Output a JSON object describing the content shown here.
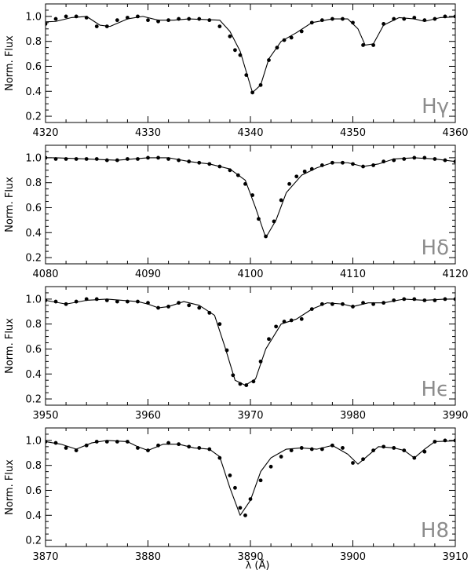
{
  "figure": {
    "xlabel": "λ (Å)",
    "ylabel": "Norm. Flux"
  },
  "chart_data": [
    {
      "type": "line",
      "panel_label": "Hγ",
      "xlim": [
        4320,
        4360
      ],
      "ylim": [
        0.15,
        1.1
      ],
      "x_ticks": [
        "4320",
        "4330",
        "4340",
        "4350",
        "4360"
      ],
      "y_ticks": [
        "0.2",
        "0.4",
        "0.6",
        "0.8",
        "1.0"
      ],
      "ylabel": "Norm. Flux",
      "model": [
        [
          4318,
          0.95
        ],
        [
          4321,
          0.96
        ],
        [
          4322.5,
          0.99
        ],
        [
          4324,
          1.0
        ],
        [
          4325.3,
          0.93
        ],
        [
          4326.3,
          0.92
        ],
        [
          4328,
          0.98
        ],
        [
          4329.5,
          1.0
        ],
        [
          4331,
          0.97
        ],
        [
          4332.5,
          0.97
        ],
        [
          4334,
          0.98
        ],
        [
          4337,
          0.97
        ],
        [
          4338,
          0.88
        ],
        [
          4339,
          0.72
        ],
        [
          4340.2,
          0.39
        ],
        [
          4341,
          0.45
        ],
        [
          4341.8,
          0.66
        ],
        [
          4343,
          0.8
        ],
        [
          4344.5,
          0.87
        ],
        [
          4346,
          0.95
        ],
        [
          4348,
          0.98
        ],
        [
          4349.5,
          0.98
        ],
        [
          4350.5,
          0.9
        ],
        [
          4351.2,
          0.77
        ],
        [
          4352,
          0.78
        ],
        [
          4353,
          0.93
        ],
        [
          4354.5,
          0.99
        ],
        [
          4356,
          0.98
        ],
        [
          4357,
          0.96
        ],
        [
          4358.5,
          0.99
        ],
        [
          4361,
          1.0
        ]
      ],
      "observed": [
        [
          4318,
          0.96
        ],
        [
          4319,
          0.94
        ],
        [
          4320,
          0.94
        ],
        [
          4321,
          0.98
        ],
        [
          4322,
          1.0
        ],
        [
          4323,
          1.0
        ],
        [
          4324,
          0.99
        ],
        [
          4325,
          0.92
        ],
        [
          4326,
          0.92
        ],
        [
          4327,
          0.97
        ],
        [
          4328,
          0.99
        ],
        [
          4329,
          1.0
        ],
        [
          4330,
          0.97
        ],
        [
          4331,
          0.96
        ],
        [
          4332,
          0.97
        ],
        [
          4333,
          0.98
        ],
        [
          4334,
          0.98
        ],
        [
          4335,
          0.98
        ],
        [
          4336,
          0.97
        ],
        [
          4337,
          0.92
        ],
        [
          4338,
          0.84
        ],
        [
          4338.5,
          0.73
        ],
        [
          4339,
          0.69
        ],
        [
          4339.6,
          0.53
        ],
        [
          4340.2,
          0.39
        ],
        [
          4341,
          0.45
        ],
        [
          4341.8,
          0.65
        ],
        [
          4342.6,
          0.75
        ],
        [
          4343.3,
          0.81
        ],
        [
          4344,
          0.83
        ],
        [
          4345,
          0.88
        ],
        [
          4346,
          0.95
        ],
        [
          4347,
          0.97
        ],
        [
          4348,
          0.98
        ],
        [
          4349,
          0.98
        ],
        [
          4350,
          0.95
        ],
        [
          4351,
          0.77
        ],
        [
          4352,
          0.77
        ],
        [
          4353,
          0.94
        ],
        [
          4354,
          0.98
        ],
        [
          4355,
          0.98
        ],
        [
          4356,
          0.99
        ],
        [
          4357,
          0.97
        ],
        [
          4358,
          0.98
        ],
        [
          4359,
          1.0
        ],
        [
          4360,
          1.0
        ]
      ]
    },
    {
      "type": "line",
      "panel_label": "Hδ",
      "xlim": [
        4080,
        4120
      ],
      "ylim": [
        0.15,
        1.1
      ],
      "x_ticks": [
        "4080",
        "4090",
        "4100",
        "4110",
        "4120"
      ],
      "y_ticks": [
        "0.2",
        "0.4",
        "0.6",
        "0.8",
        "1.0"
      ],
      "ylabel": "Norm. Flux",
      "model": [
        [
          4078,
          1.0
        ],
        [
          4081,
          1.0
        ],
        [
          4084,
          0.99
        ],
        [
          4087,
          0.98
        ],
        [
          4090,
          1.0
        ],
        [
          4092,
          1.0
        ],
        [
          4094,
          0.97
        ],
        [
          4096,
          0.95
        ],
        [
          4098,
          0.91
        ],
        [
          4099.5,
          0.82
        ],
        [
          4100.5,
          0.6
        ],
        [
          4101.5,
          0.36
        ],
        [
          4102.5,
          0.5
        ],
        [
          4103.5,
          0.72
        ],
        [
          4105,
          0.86
        ],
        [
          4106.5,
          0.92
        ],
        [
          4108,
          0.96
        ],
        [
          4109.5,
          0.96
        ],
        [
          4111,
          0.93
        ],
        [
          4112.5,
          0.95
        ],
        [
          4114,
          0.99
        ],
        [
          4116,
          1.0
        ],
        [
          4118,
          0.99
        ],
        [
          4121,
          0.96
        ]
      ],
      "observed": [
        [
          4080,
          1.0
        ],
        [
          4081,
          0.99
        ],
        [
          4082,
          0.99
        ],
        [
          4083,
          0.99
        ],
        [
          4084,
          0.99
        ],
        [
          4085,
          0.99
        ],
        [
          4086,
          0.98
        ],
        [
          4087,
          0.98
        ],
        [
          4088,
          0.99
        ],
        [
          4089,
          0.99
        ],
        [
          4090,
          1.0
        ],
        [
          4091,
          1.0
        ],
        [
          4092,
          0.99
        ],
        [
          4093,
          0.98
        ],
        [
          4094,
          0.97
        ],
        [
          4095,
          0.96
        ],
        [
          4096,
          0.95
        ],
        [
          4097,
          0.93
        ],
        [
          4098,
          0.9
        ],
        [
          4098.8,
          0.86
        ],
        [
          4099.5,
          0.79
        ],
        [
          4100.2,
          0.7
        ],
        [
          4100.8,
          0.51
        ],
        [
          4101.5,
          0.37
        ],
        [
          4102.3,
          0.49
        ],
        [
          4103,
          0.66
        ],
        [
          4103.8,
          0.79
        ],
        [
          4104.5,
          0.85
        ],
        [
          4105.3,
          0.89
        ],
        [
          4106,
          0.91
        ],
        [
          4107,
          0.94
        ],
        [
          4108,
          0.96
        ],
        [
          4109,
          0.96
        ],
        [
          4110,
          0.95
        ],
        [
          4111,
          0.93
        ],
        [
          4112,
          0.94
        ],
        [
          4113,
          0.97
        ],
        [
          4114,
          0.98
        ],
        [
          4115,
          0.99
        ],
        [
          4116,
          1.0
        ],
        [
          4117,
          1.0
        ],
        [
          4118,
          0.99
        ],
        [
          4119,
          0.98
        ],
        [
          4120,
          0.97
        ]
      ]
    },
    {
      "type": "line",
      "panel_label": "Hϵ",
      "xlim": [
        3950,
        3990
      ],
      "ylim": [
        0.15,
        1.1
      ],
      "x_ticks": [
        "3950",
        "3960",
        "3970",
        "3980",
        "3990"
      ],
      "y_ticks": [
        "0.2",
        "0.4",
        "0.6",
        "0.8",
        "1.0"
      ],
      "ylabel": "Norm. Flux",
      "model": [
        [
          3948,
          1.0
        ],
        [
          3950,
          0.99
        ],
        [
          3952,
          0.96
        ],
        [
          3954,
          0.99
        ],
        [
          3956,
          1.0
        ],
        [
          3959,
          0.98
        ],
        [
          3960,
          0.96
        ],
        [
          3961,
          0.93
        ],
        [
          3962,
          0.94
        ],
        [
          3963.5,
          0.98
        ],
        [
          3965,
          0.95
        ],
        [
          3966.5,
          0.87
        ],
        [
          3967.5,
          0.62
        ],
        [
          3968.5,
          0.35
        ],
        [
          3969.5,
          0.31
        ],
        [
          3970.5,
          0.36
        ],
        [
          3971.5,
          0.6
        ],
        [
          3973,
          0.8
        ],
        [
          3974.5,
          0.84
        ],
        [
          3976,
          0.92
        ],
        [
          3977.5,
          0.97
        ],
        [
          3979,
          0.96
        ],
        [
          3980,
          0.94
        ],
        [
          3981.5,
          0.97
        ],
        [
          3983,
          0.97
        ],
        [
          3985,
          1.0
        ],
        [
          3987,
          0.99
        ],
        [
          3989,
          1.0
        ],
        [
          3991,
          1.0
        ]
      ],
      "observed": [
        [
          3950,
          0.99
        ],
        [
          3951,
          0.98
        ],
        [
          3952,
          0.96
        ],
        [
          3953,
          0.98
        ],
        [
          3954,
          1.0
        ],
        [
          3955,
          1.0
        ],
        [
          3956,
          0.99
        ],
        [
          3957,
          0.98
        ],
        [
          3958,
          0.98
        ],
        [
          3959,
          0.98
        ],
        [
          3960,
          0.97
        ],
        [
          3961,
          0.93
        ],
        [
          3962,
          0.94
        ],
        [
          3963,
          0.97
        ],
        [
          3964,
          0.95
        ],
        [
          3965,
          0.93
        ],
        [
          3966,
          0.89
        ],
        [
          3967,
          0.8
        ],
        [
          3967.7,
          0.59
        ],
        [
          3968.3,
          0.39
        ],
        [
          3969,
          0.32
        ],
        [
          3969.6,
          0.31
        ],
        [
          3970.3,
          0.34
        ],
        [
          3971,
          0.5
        ],
        [
          3971.8,
          0.68
        ],
        [
          3972.5,
          0.78
        ],
        [
          3973.3,
          0.82
        ],
        [
          3974,
          0.83
        ],
        [
          3975,
          0.84
        ],
        [
          3976,
          0.92
        ],
        [
          3977,
          0.96
        ],
        [
          3978,
          0.96
        ],
        [
          3979,
          0.96
        ],
        [
          3980,
          0.94
        ],
        [
          3981,
          0.97
        ],
        [
          3982,
          0.96
        ],
        [
          3983,
          0.97
        ],
        [
          3984,
          0.99
        ],
        [
          3985,
          1.0
        ],
        [
          3986,
          1.0
        ],
        [
          3987,
          0.99
        ],
        [
          3988,
          0.99
        ],
        [
          3989,
          1.0
        ],
        [
          3990,
          1.0
        ]
      ]
    },
    {
      "type": "line",
      "panel_label": "H8",
      "xlim": [
        3870,
        3910
      ],
      "ylim": [
        0.15,
        1.1
      ],
      "x_ticks": [
        "3870",
        "3880",
        "3890",
        "3900",
        "3910"
      ],
      "y_ticks": [
        "0.2",
        "0.4",
        "0.6",
        "0.8",
        "1.0"
      ],
      "ylabel": "Norm. Flux",
      "model": [
        [
          3868,
          1.0
        ],
        [
          3870,
          0.99
        ],
        [
          3871.5,
          0.97
        ],
        [
          3873,
          0.93
        ],
        [
          3874.5,
          0.98
        ],
        [
          3876,
          1.0
        ],
        [
          3878,
          0.99
        ],
        [
          3879,
          0.95
        ],
        [
          3880,
          0.92
        ],
        [
          3881.5,
          0.97
        ],
        [
          3883,
          0.97
        ],
        [
          3884.5,
          0.94
        ],
        [
          3886,
          0.93
        ],
        [
          3887,
          0.87
        ],
        [
          3888,
          0.62
        ],
        [
          3889,
          0.4
        ],
        [
          3890,
          0.52
        ],
        [
          3891,
          0.75
        ],
        [
          3892,
          0.86
        ],
        [
          3893.5,
          0.93
        ],
        [
          3895,
          0.94
        ],
        [
          3896.5,
          0.93
        ],
        [
          3898,
          0.96
        ],
        [
          3899.5,
          0.89
        ],
        [
          3900.5,
          0.81
        ],
        [
          3901.5,
          0.88
        ],
        [
          3902.5,
          0.95
        ],
        [
          3904,
          0.94
        ],
        [
          3905,
          0.92
        ],
        [
          3906,
          0.86
        ],
        [
          3907,
          0.93
        ],
        [
          3908,
          0.99
        ],
        [
          3911,
          1.0
        ]
      ],
      "observed": [
        [
          3870,
          0.99
        ],
        [
          3871,
          0.98
        ],
        [
          3872,
          0.94
        ],
        [
          3873,
          0.92
        ],
        [
          3874,
          0.96
        ],
        [
          3875,
          0.99
        ],
        [
          3876,
          0.99
        ],
        [
          3877,
          0.99
        ],
        [
          3878,
          0.99
        ],
        [
          3879,
          0.94
        ],
        [
          3880,
          0.92
        ],
        [
          3881,
          0.96
        ],
        [
          3882,
          0.98
        ],
        [
          3883,
          0.97
        ],
        [
          3884,
          0.95
        ],
        [
          3885,
          0.94
        ],
        [
          3886,
          0.93
        ],
        [
          3887,
          0.86
        ],
        [
          3888,
          0.72
        ],
        [
          3888.5,
          0.62
        ],
        [
          3889,
          0.46
        ],
        [
          3889.5,
          0.4
        ],
        [
          3890,
          0.53
        ],
        [
          3891,
          0.68
        ],
        [
          3892,
          0.79
        ],
        [
          3893,
          0.87
        ],
        [
          3894,
          0.92
        ],
        [
          3895,
          0.94
        ],
        [
          3896,
          0.93
        ],
        [
          3897,
          0.93
        ],
        [
          3898,
          0.96
        ],
        [
          3899,
          0.94
        ],
        [
          3900,
          0.82
        ],
        [
          3901,
          0.85
        ],
        [
          3902,
          0.92
        ],
        [
          3903,
          0.95
        ],
        [
          3904,
          0.94
        ],
        [
          3905,
          0.92
        ],
        [
          3906,
          0.86
        ],
        [
          3907,
          0.91
        ],
        [
          3908,
          0.99
        ],
        [
          3909,
          1.0
        ],
        [
          3910,
          1.0
        ]
      ]
    }
  ]
}
